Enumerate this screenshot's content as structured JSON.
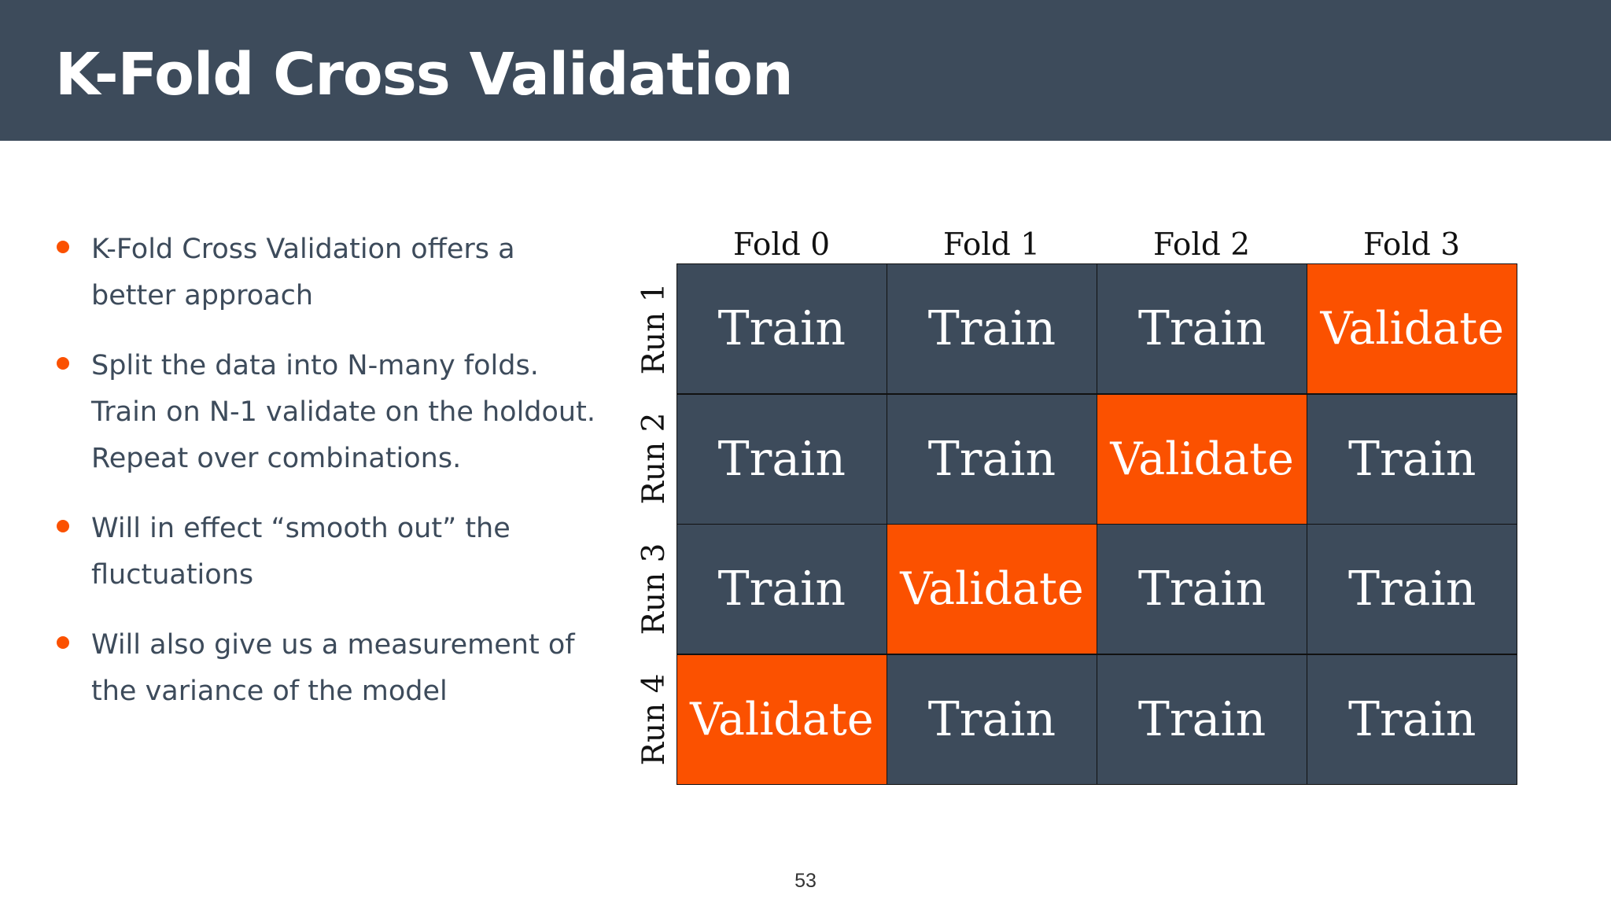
{
  "header": {
    "title": "K-Fold Cross Validation"
  },
  "bullets": [
    "K-Fold Cross Validation offers a better approach",
    "Split the data into N-many folds. Train on N-1 validate on the holdout. Repeat over combinations.",
    "Will in effect “smooth out” the fluctuations",
    "Will also give us a measurement of the variance of the model"
  ],
  "diagram": {
    "folds": [
      "Fold 0",
      "Fold 1",
      "Fold 2",
      "Fold 3"
    ],
    "runs": [
      {
        "label": "Run 1",
        "cells": [
          "Train",
          "Train",
          "Train",
          "Validate"
        ]
      },
      {
        "label": "Run 2",
        "cells": [
          "Train",
          "Train",
          "Validate",
          "Train"
        ]
      },
      {
        "label": "Run 3",
        "cells": [
          "Train",
          "Validate",
          "Train",
          "Train"
        ]
      },
      {
        "label": "Run 4",
        "cells": [
          "Validate",
          "Train",
          "Train",
          "Train"
        ]
      }
    ]
  },
  "colors": {
    "header_bg": "#3d4b5b",
    "train_cell": "#3d4b5b",
    "validate_cell": "#fb5100",
    "accent": "#fb5100"
  },
  "footer": {
    "page_number": "53"
  }
}
